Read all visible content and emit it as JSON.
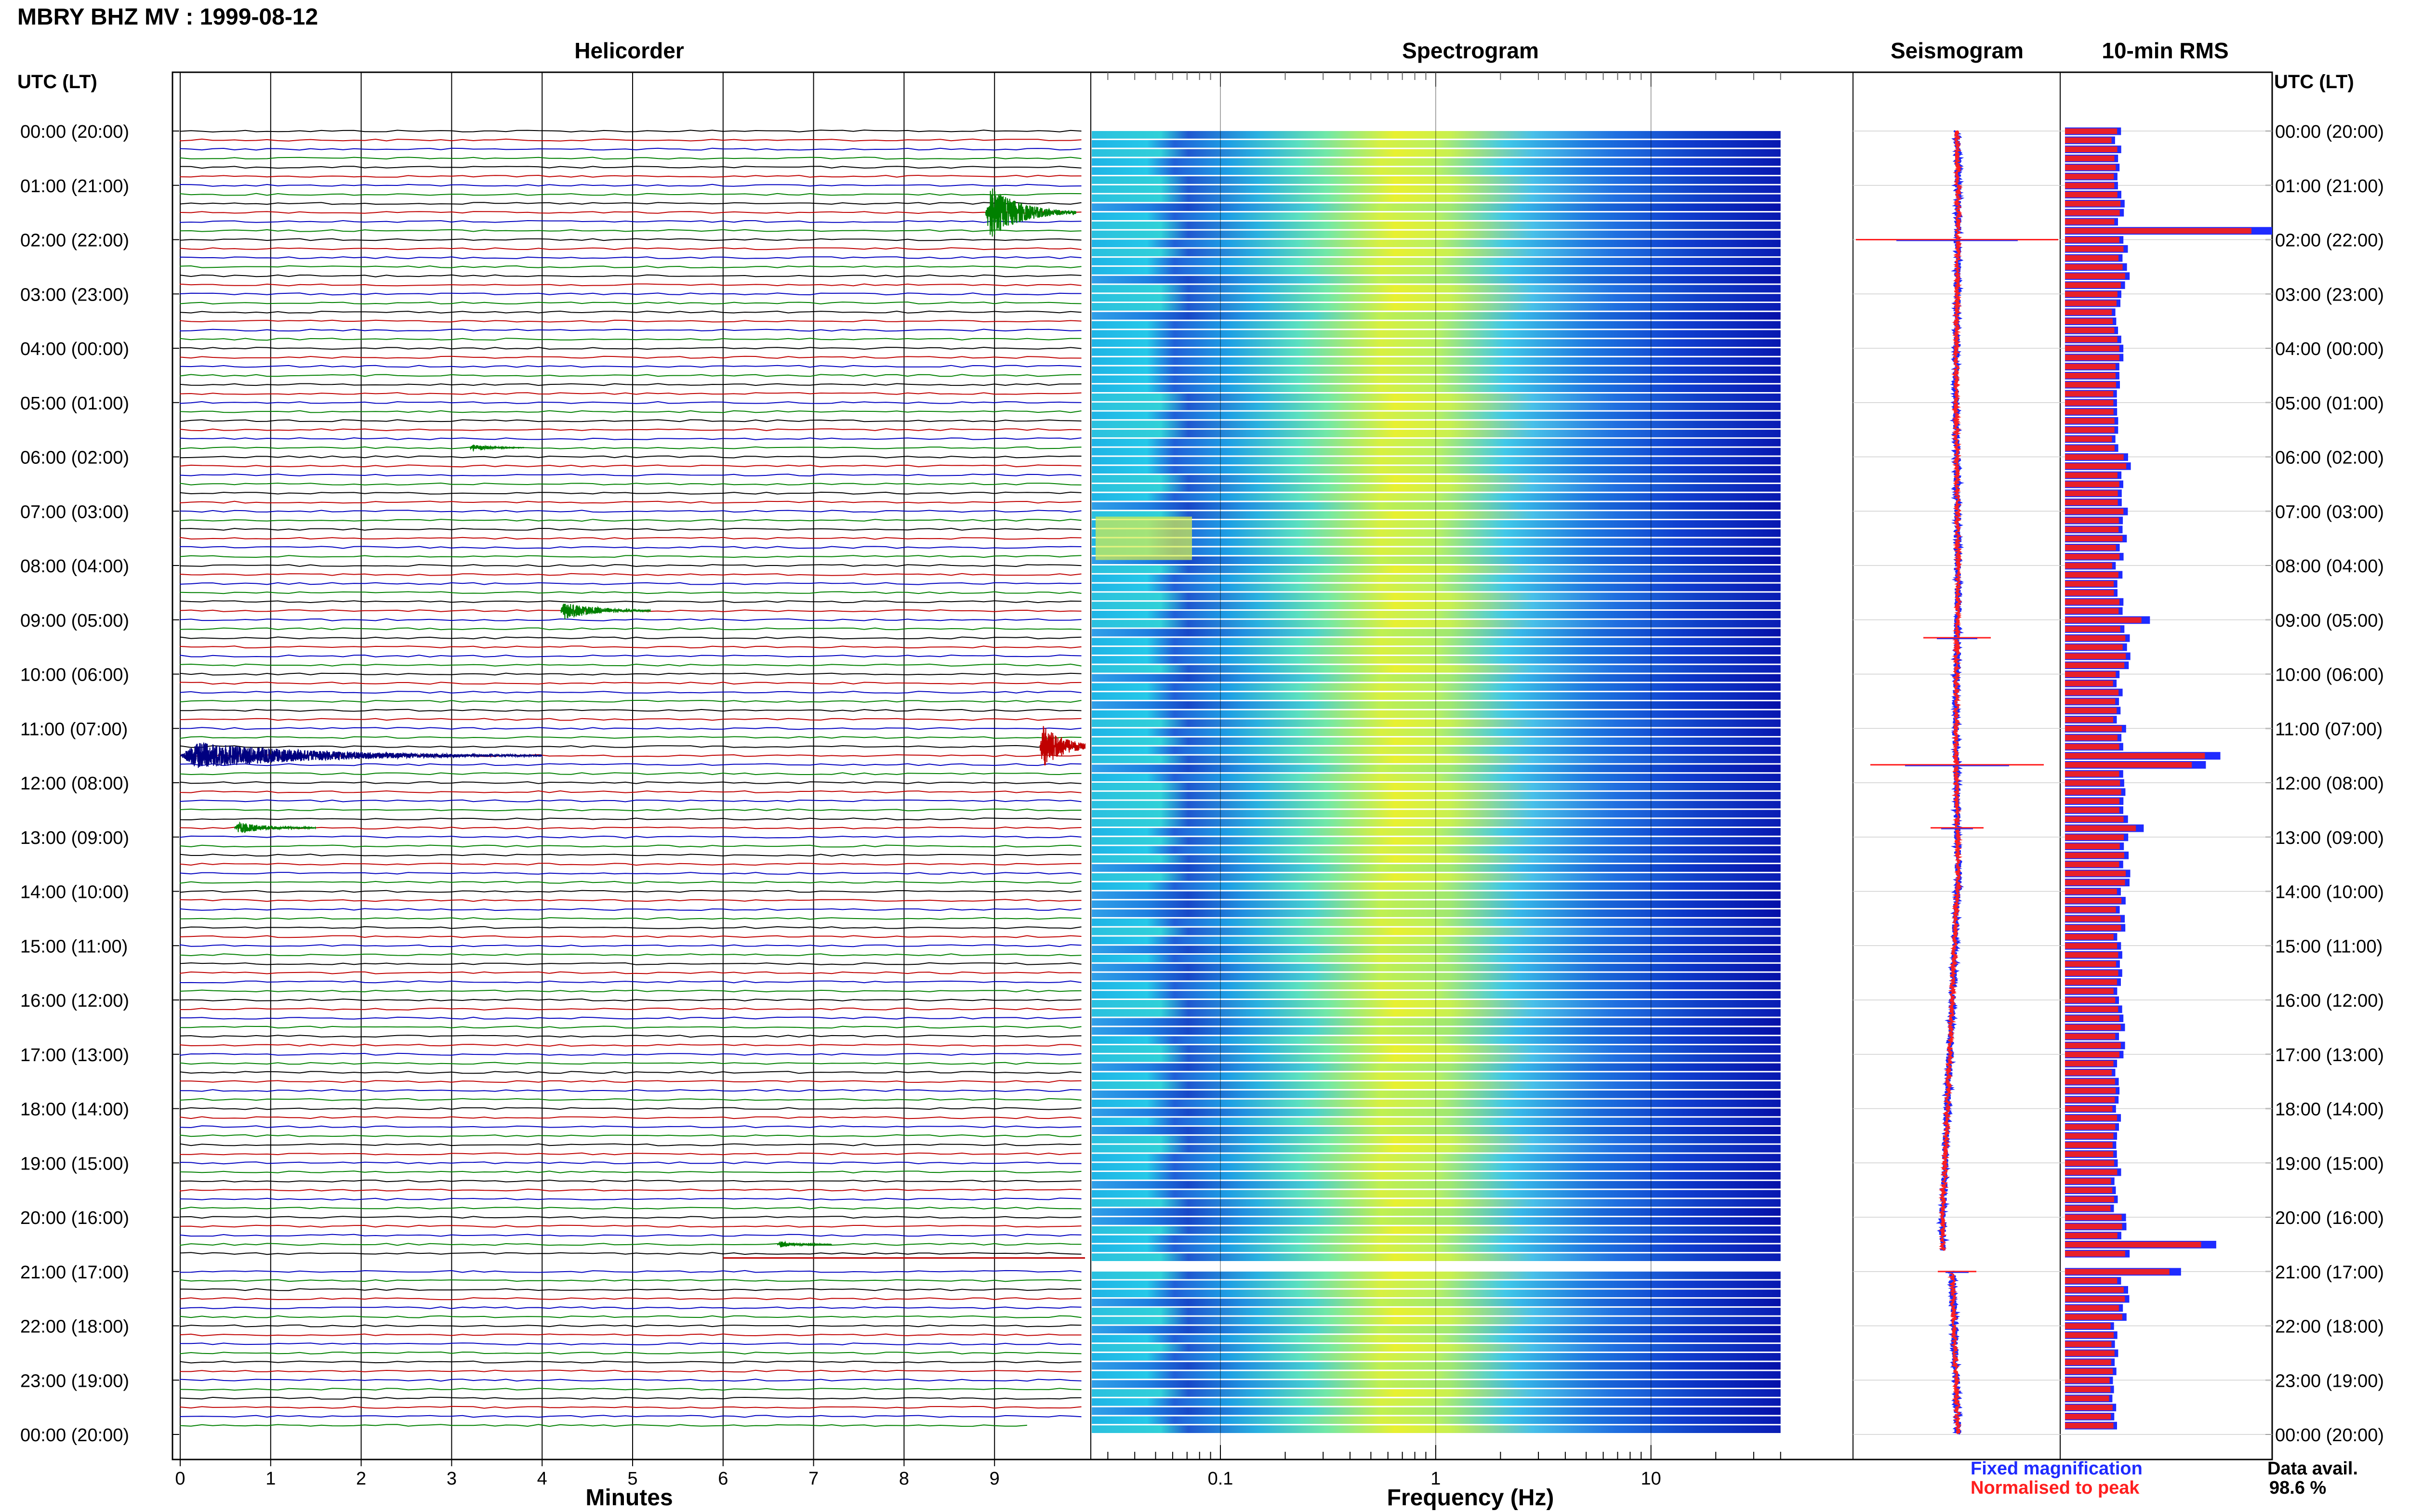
{
  "title": "MBRY BHZ MV : 1999-08-12",
  "panels": {
    "helicorder": "Helicorder",
    "spectrogram": "Spectrogram",
    "seismogram": "Seismogram",
    "rms": "10-min RMS"
  },
  "time_axis_label": "UTC (LT)",
  "legend": {
    "fixed": "Fixed magnification",
    "normalised": "Normalised to peak",
    "fixed_color": "#1f2bff",
    "normalised_color": "#ff1f1f"
  },
  "data_avail": {
    "label": "Data avail.",
    "value": "98.6 %"
  },
  "chart_data": [
    {
      "type": "line",
      "name": "helicorder",
      "title": "Helicorder",
      "xlabel": "Minutes",
      "x_ticks": [
        "0",
        "1",
        "2",
        "3",
        "4",
        "5",
        "6",
        "7",
        "8",
        "9"
      ],
      "xlim": [
        0,
        10
      ],
      "y_ticks": [
        "00:00 (20:00)",
        "01:00 (21:00)",
        "02:00 (22:00)",
        "03:00 (23:00)",
        "04:00 (00:00)",
        "05:00 (01:00)",
        "06:00 (02:00)",
        "07:00 (03:00)",
        "08:00 (04:00)",
        "09:00 (05:00)",
        "10:00 (06:00)",
        "11:00 (07:00)",
        "12:00 (08:00)",
        "13:00 (09:00)",
        "14:00 (10:00)",
        "15:00 (11:00)",
        "16:00 (12:00)",
        "17:00 (13:00)",
        "18:00 (14:00)",
        "19:00 (15:00)",
        "20:00 (16:00)",
        "21:00 (17:00)",
        "22:00 (18:00)",
        "23:00 (19:00)",
        "00:00 (20:00)"
      ],
      "traces_per_hour": 6,
      "trace_colors": [
        "#000000",
        "#c00000",
        "#0000c0",
        "#008000"
      ],
      "events": [
        {
          "hour": 1.5,
          "minute": 8.9,
          "duration": 1.0,
          "amp": 1.6,
          "color": "#008000"
        },
        {
          "hour": 11.5,
          "minute": 0.0,
          "duration": 4.0,
          "amp": 0.8,
          "color": "#000080"
        },
        {
          "hour": 11.33,
          "minute": 9.5,
          "duration": 0.7,
          "amp": 1.4,
          "color": "#c00000"
        },
        {
          "hour": 8.83,
          "minute": 4.2,
          "duration": 1.0,
          "amp": 0.55,
          "color": "#008000"
        },
        {
          "hour": 12.83,
          "minute": 0.6,
          "duration": 0.9,
          "amp": 0.35,
          "color": "#008000"
        },
        {
          "hour": 5.83,
          "minute": 3.2,
          "duration": 0.6,
          "amp": 0.2,
          "color": "#008000"
        },
        {
          "hour": 20.5,
          "minute": 6.6,
          "duration": 0.6,
          "amp": 0.2,
          "color": "#008000"
        }
      ]
    },
    {
      "type": "heatmap",
      "name": "spectrogram",
      "title": "Spectrogram",
      "xlabel": "Frequency (Hz)",
      "x_scale": "log",
      "x_ticks": [
        "0.1",
        "1",
        "10"
      ],
      "xlim": [
        0.025,
        40
      ],
      "gap_hours": [
        20.67,
        21.0
      ]
    },
    {
      "type": "line",
      "name": "seismogram",
      "title": "Seismogram",
      "series": [
        {
          "name": "Fixed magnification",
          "color": "#1f2bff"
        },
        {
          "name": "Normalised to peak",
          "color": "#ff1f1f"
        }
      ],
      "spikes_hour": [
        2.0,
        9.33,
        11.67,
        12.83,
        21.0
      ]
    },
    {
      "type": "bar",
      "name": "rms",
      "title": "10-min RMS",
      "orientation": "horizontal",
      "series": [
        {
          "name": "Fixed magnification",
          "color": "#1f2bff"
        },
        {
          "name": "Normalised to peak",
          "color": "#ff1f1f"
        }
      ],
      "hourly_values": [
        0.26,
        0.28,
        1.0,
        0.26,
        0.27,
        0.27,
        0.33,
        0.29,
        0.27,
        0.41,
        0.27,
        0.75,
        0.29,
        0.38,
        0.28,
        0.27,
        0.28,
        0.27,
        0.26,
        0.26,
        0.73,
        0.56,
        0.25,
        0.25
      ],
      "peaks": [
        {
          "hour": 1.83,
          "value": 1.0
        },
        {
          "hour": 9.0,
          "value": 0.41
        },
        {
          "hour": 11.5,
          "value": 0.75
        },
        {
          "hour": 11.67,
          "value": 0.68
        },
        {
          "hour": 12.83,
          "value": 0.38
        },
        {
          "hour": 20.5,
          "value": 0.73
        },
        {
          "hour": 21.0,
          "value": 0.56
        }
      ]
    }
  ]
}
